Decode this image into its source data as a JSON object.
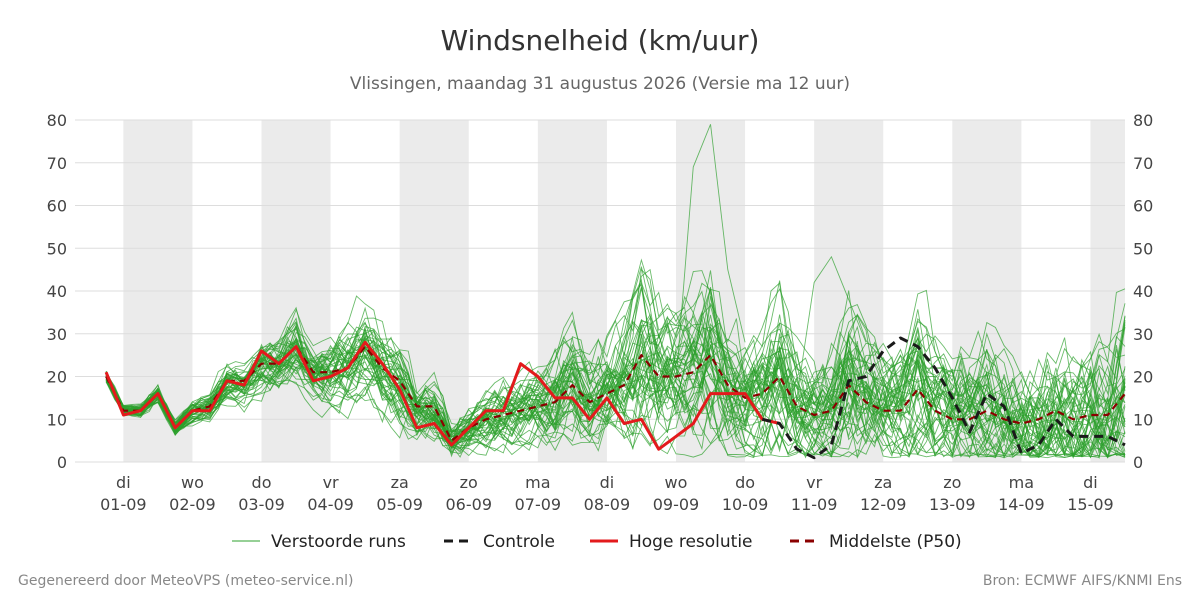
{
  "title": "Windsnelheid (km/uur)",
  "subtitle": "Vlissingen, maandag 31 augustus 2026 (Versie ma 12 uur)",
  "footer_left": "Gegenereerd door MeteoVPS (meteo-service.nl)",
  "footer_right": "Bron: ECMWF AIFS/KNMI Ens",
  "colors": {
    "ensemble": "#2ca02c",
    "control": "#1a1a1a",
    "highres": "#e31a1c",
    "median": "#8b0000",
    "shade": "#ebebeb",
    "grid": "#dddddd"
  },
  "chart_data": {
    "type": "line",
    "x_unit": "days",
    "xlim": [
      -0.7,
      14.5
    ],
    "ylim": [
      0,
      80
    ],
    "yticks": [
      0,
      10,
      20,
      30,
      40,
      50,
      60,
      70,
      80
    ],
    "grid": true,
    "legend_position": "bottom",
    "day_ticks": [
      {
        "x": 0,
        "day": "di",
        "date": "01-09"
      },
      {
        "x": 1,
        "day": "wo",
        "date": "02-09"
      },
      {
        "x": 2,
        "day": "do",
        "date": "03-09"
      },
      {
        "x": 3,
        "day": "vr",
        "date": "04-09"
      },
      {
        "x": 4,
        "day": "za",
        "date": "05-09"
      },
      {
        "x": 5,
        "day": "zo",
        "date": "06-09"
      },
      {
        "x": 6,
        "day": "ma",
        "date": "07-09"
      },
      {
        "x": 7,
        "day": "di",
        "date": "08-09"
      },
      {
        "x": 8,
        "day": "wo",
        "date": "09-09"
      },
      {
        "x": 9,
        "day": "do",
        "date": "10-09"
      },
      {
        "x": 10,
        "day": "vr",
        "date": "11-09"
      },
      {
        "x": 11,
        "day": "za",
        "date": "12-09"
      },
      {
        "x": 12,
        "day": "zo",
        "date": "13-09"
      },
      {
        "x": 13,
        "day": "ma",
        "date": "14-09"
      },
      {
        "x": 14,
        "day": "di",
        "date": "15-09"
      }
    ],
    "shaded_ranges": [
      [
        0,
        1
      ],
      [
        2,
        3
      ],
      [
        4,
        5
      ],
      [
        6,
        7
      ],
      [
        8,
        9
      ],
      [
        10,
        11
      ],
      [
        12,
        13
      ],
      [
        14,
        14.5
      ]
    ],
    "legend": [
      {
        "key": "ensemble",
        "label": "Verstoorde runs",
        "style": "thin"
      },
      {
        "key": "control",
        "label": "Controle",
        "style": "dashed"
      },
      {
        "key": "highres",
        "label": "Hoge resolutie",
        "style": "solid"
      },
      {
        "key": "median",
        "label": "Middelste (P50)",
        "style": "dashed"
      }
    ],
    "series": [
      {
        "key": "median",
        "x": [
          -0.25,
          -0.0,
          0.25,
          0.5,
          0.75,
          1.0,
          1.25,
          1.5,
          1.75,
          2.0,
          2.25,
          2.5,
          2.75,
          3.0,
          3.25,
          3.5,
          3.75,
          4.0,
          4.25,
          4.5,
          4.75,
          5.0,
          5.25,
          5.5,
          5.75,
          6.0,
          6.25,
          6.5,
          6.75,
          7.0,
          7.25,
          7.5,
          7.75,
          8.0,
          8.25,
          8.5,
          8.75,
          9.0,
          9.25,
          9.5,
          9.75,
          10.0,
          10.25,
          10.5,
          10.75,
          11.0,
          11.25,
          11.5,
          11.75,
          12.0,
          12.25,
          12.5,
          12.75,
          13.0,
          13.25,
          13.5,
          13.75,
          14.0,
          14.25,
          14.5
        ],
        "y": [
          20,
          12,
          12,
          16,
          8,
          12,
          13,
          19,
          19,
          23,
          23,
          27,
          21,
          21,
          22,
          27,
          22,
          19,
          13,
          13,
          5,
          8,
          10,
          11,
          12,
          13,
          14,
          18,
          14,
          16,
          18,
          25,
          20,
          20,
          21,
          25,
          18,
          15,
          16,
          20,
          13,
          11,
          12,
          18,
          14,
          12,
          12,
          17,
          12,
          10,
          10,
          12,
          10,
          9,
          10,
          12,
          10,
          11,
          11,
          16
        ]
      },
      {
        "key": "highres",
        "x": [
          -0.25,
          -0.0,
          0.25,
          0.5,
          0.75,
          1.0,
          1.25,
          1.5,
          1.75,
          2.0,
          2.25,
          2.5,
          2.75,
          3.0,
          3.25,
          3.5,
          3.75,
          4.0,
          4.25,
          4.5,
          4.75,
          5.0,
          5.25,
          5.5,
          5.75,
          6.0,
          6.25,
          6.5,
          6.75,
          7.0,
          7.25,
          7.5,
          7.75,
          8.0,
          8.25,
          8.5,
          8.75,
          9.0,
          9.25,
          9.5
        ],
        "y": [
          21,
          11,
          12,
          16,
          8,
          12,
          12,
          19,
          18,
          26,
          23,
          27,
          19,
          20,
          22,
          28,
          23,
          17,
          8,
          9,
          4,
          8,
          12,
          12,
          23,
          20,
          15,
          15,
          10,
          15,
          9,
          10,
          3,
          6,
          9,
          16,
          16,
          16,
          10,
          9
        ]
      },
      {
        "key": "control",
        "x": [
          9.25,
          9.5,
          9.75,
          10.0,
          10.25,
          10.5,
          10.75,
          11.0,
          11.25,
          11.5,
          11.75,
          12.0,
          12.25,
          12.5,
          12.75,
          13.0,
          13.25,
          13.5,
          13.75,
          14.0,
          14.25,
          14.5
        ],
        "y": [
          10,
          9,
          3,
          1,
          4,
          19,
          20,
          26,
          29,
          27,
          22,
          15,
          7,
          16,
          13,
          2,
          4,
          10,
          6,
          6,
          6,
          4
        ]
      }
    ]
  }
}
